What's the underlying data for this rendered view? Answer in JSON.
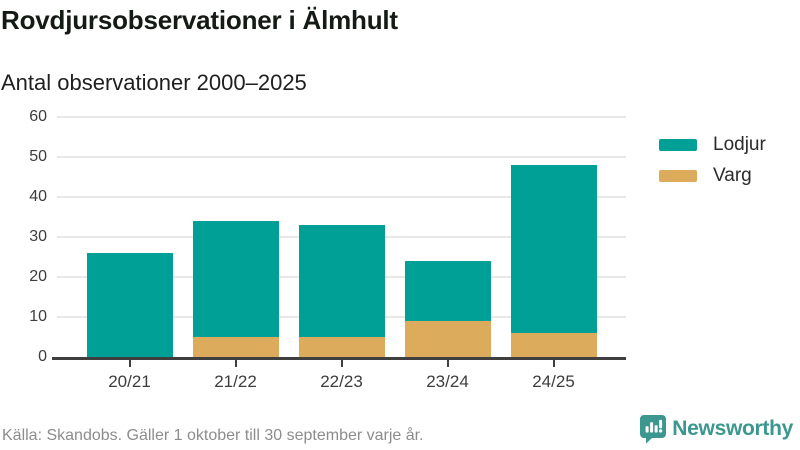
{
  "chart_data": {
    "type": "bar",
    "stacked": true,
    "title": "Rovdjursobservationer i Älmhult",
    "subtitle": "Antal observationer 2000–2025",
    "categories": [
      "20/21",
      "21/22",
      "22/23",
      "23/24",
      "24/25"
    ],
    "series": [
      {
        "name": "Lodjur",
        "color": "#00a096",
        "values": [
          26,
          29,
          28,
          15,
          42
        ]
      },
      {
        "name": "Varg",
        "color": "#dcab5c",
        "values": [
          0,
          5,
          5,
          9,
          6
        ]
      }
    ],
    "stack_order_bottom_to_top": [
      "Varg",
      "Lodjur"
    ],
    "totals": [
      26,
      34,
      33,
      24,
      48
    ],
    "ylim": [
      0,
      60
    ],
    "y_ticks": [
      0,
      10,
      20,
      30,
      40,
      50,
      60
    ],
    "xlabel": "",
    "ylabel": "",
    "grid": true,
    "legend_position": "right"
  },
  "footer": {
    "source": "Källa: Skandobs. Gäller 1 oktober till 30 september varje år.",
    "brand": "Newsworthy",
    "brand_color": "#3b978f"
  }
}
